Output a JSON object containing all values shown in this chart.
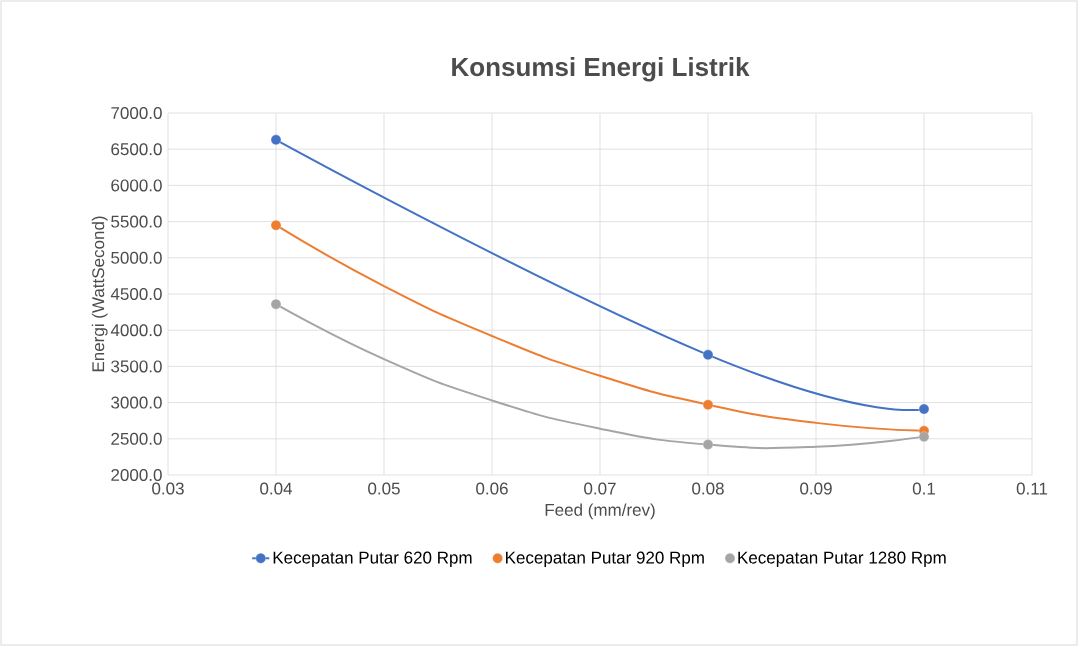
{
  "chart_data": {
    "type": "scatter",
    "title": "Konsumsi Energi Listrik",
    "xlabel": "Feed (mm/rev)",
    "ylabel": "Energi (WattSecond)",
    "xlim": [
      0.03,
      0.11
    ],
    "xticks": [
      0.03,
      0.04,
      0.05,
      0.06,
      0.07,
      0.08,
      0.09,
      0.1,
      0.11
    ],
    "ylim": [
      2000,
      7000
    ],
    "yticks": [
      {
        "value": 2000,
        "label": "2000.0"
      },
      {
        "value": 2500,
        "label": "2500.0"
      },
      {
        "value": 3000,
        "label": "3000.0"
      },
      {
        "value": 3500,
        "label": "3500.0"
      },
      {
        "value": 4000,
        "label": "4000.0"
      },
      {
        "value": 4500,
        "label": "4500.0"
      },
      {
        "value": 5000,
        "label": "5000.0"
      },
      {
        "value": 5500,
        "label": "5500.0"
      },
      {
        "value": 6000,
        "label": "6000.0"
      },
      {
        "value": 6500,
        "label": "6500.0"
      },
      {
        "value": 7000,
        "label": "7000.0"
      }
    ],
    "grid": true,
    "legend": "bottom",
    "series": [
      {
        "name": "Kecepatan Putar 620 Rpm",
        "type": "line",
        "color": "#4472c4",
        "marker": "circle",
        "x": [
          0.04,
          0.08,
          0.1
        ],
        "values": [
          6630,
          3660,
          2910
        ]
      },
      {
        "name": "Kecepatan Putar 920 Rpm",
        "color": "#ed7d31",
        "marker": "circle",
        "x": [
          0.04,
          0.08,
          0.1
        ],
        "values": [
          5450,
          2970,
          2610
        ]
      },
      {
        "name": "Kecepatan Putar 1280 Rpm",
        "color": "#a5a5a5",
        "marker": "circle",
        "x": [
          0.04,
          0.08,
          0.1
        ],
        "values": [
          4360,
          2420,
          2530
        ]
      },
      {
        "type": "line",
        "color": "#ed7d31",
        "marker": "none",
        "x": [
          0.04,
          0.05,
          0.06,
          0.07,
          0.08,
          0.09,
          0.1
        ],
        "values": [
          5450,
          4610,
          3920,
          3370,
          2970,
          2720,
          2610
        ]
      },
      {
        "type": "line",
        "color": "#a5a5a5",
        "marker": "none",
        "x": [
          0.04,
          0.05,
          0.06,
          0.07,
          0.08,
          0.09,
          0.1
        ],
        "values": [
          4360,
          3600,
          3030,
          2640,
          2420,
          2390,
          2530
        ]
      }
    ]
  }
}
